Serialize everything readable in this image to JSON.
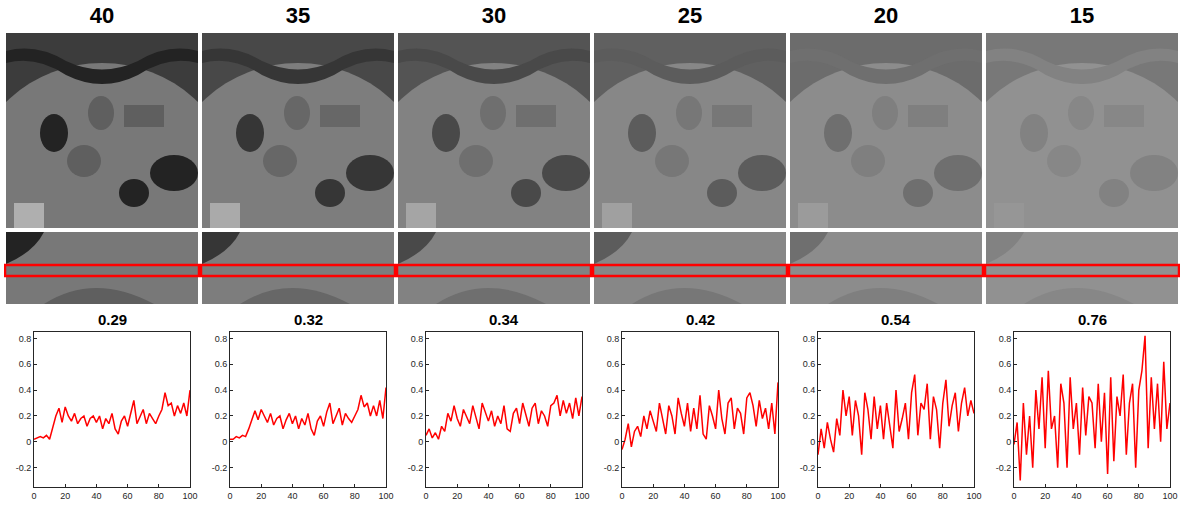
{
  "image_panels": [
    {
      "title": "40"
    },
    {
      "title": "35"
    },
    {
      "title": "30"
    },
    {
      "title": "25"
    },
    {
      "title": "20"
    },
    {
      "title": "15"
    }
  ],
  "chart_data": [
    {
      "type": "line",
      "title": "0.29",
      "color": "#ff0000",
      "xlim": [
        0,
        100
      ],
      "xticks": [
        0,
        20,
        40,
        60,
        80,
        100
      ],
      "ylim": [
        -0.35,
        0.85
      ],
      "yticks": [
        -0.2,
        0,
        0.2,
        0.4,
        0.6,
        0.8
      ],
      "x": [
        0,
        2,
        4,
        6,
        8,
        10,
        12,
        14,
        16,
        18,
        20,
        22,
        24,
        26,
        28,
        30,
        32,
        34,
        36,
        38,
        40,
        42,
        44,
        46,
        48,
        50,
        52,
        54,
        56,
        58,
        60,
        62,
        64,
        66,
        68,
        70,
        72,
        74,
        76,
        78,
        80,
        82,
        84,
        86,
        88,
        90,
        92,
        94,
        96,
        98,
        100
      ],
      "values": [
        0.02,
        0.03,
        0.04,
        0.03,
        0.05,
        0.02,
        0.12,
        0.2,
        0.26,
        0.15,
        0.27,
        0.2,
        0.16,
        0.22,
        0.14,
        0.18,
        0.2,
        0.12,
        0.18,
        0.2,
        0.15,
        0.2,
        0.1,
        0.18,
        0.14,
        0.22,
        0.1,
        0.06,
        0.16,
        0.2,
        0.12,
        0.22,
        0.32,
        0.14,
        0.2,
        0.25,
        0.14,
        0.22,
        0.18,
        0.14,
        0.2,
        0.25,
        0.38,
        0.28,
        0.3,
        0.2,
        0.28,
        0.22,
        0.3,
        0.2,
        0.4
      ]
    },
    {
      "type": "line",
      "title": "0.32",
      "color": "#ff0000",
      "xlim": [
        0,
        100
      ],
      "xticks": [
        0,
        20,
        40,
        60,
        80,
        100
      ],
      "ylim": [
        -0.35,
        0.85
      ],
      "yticks": [
        -0.2,
        0,
        0.2,
        0.4,
        0.6,
        0.8
      ],
      "x": [
        0,
        2,
        4,
        6,
        8,
        10,
        12,
        14,
        16,
        18,
        20,
        22,
        24,
        26,
        28,
        30,
        32,
        34,
        36,
        38,
        40,
        42,
        44,
        46,
        48,
        50,
        52,
        54,
        56,
        58,
        60,
        62,
        64,
        66,
        68,
        70,
        72,
        74,
        76,
        78,
        80,
        82,
        84,
        86,
        88,
        90,
        92,
        94,
        96,
        98,
        100
      ],
      "values": [
        0.02,
        0.02,
        0.04,
        0.03,
        0.05,
        0.04,
        0.1,
        0.18,
        0.24,
        0.17,
        0.25,
        0.2,
        0.15,
        0.22,
        0.13,
        0.18,
        0.2,
        0.1,
        0.17,
        0.22,
        0.14,
        0.2,
        0.1,
        0.18,
        0.13,
        0.22,
        0.1,
        0.05,
        0.16,
        0.2,
        0.12,
        0.23,
        0.3,
        0.14,
        0.2,
        0.26,
        0.13,
        0.22,
        0.18,
        0.15,
        0.2,
        0.25,
        0.36,
        0.27,
        0.3,
        0.2,
        0.28,
        0.2,
        0.32,
        0.18,
        0.42
      ]
    },
    {
      "type": "line",
      "title": "0.34",
      "color": "#ff0000",
      "xlim": [
        0,
        100
      ],
      "xticks": [
        0,
        20,
        40,
        60,
        80,
        100
      ],
      "ylim": [
        -0.35,
        0.85
      ],
      "yticks": [
        -0.2,
        0,
        0.2,
        0.4,
        0.6,
        0.8
      ],
      "x": [
        0,
        2,
        4,
        6,
        8,
        10,
        12,
        14,
        16,
        18,
        20,
        22,
        24,
        26,
        28,
        30,
        32,
        34,
        36,
        38,
        40,
        42,
        44,
        46,
        48,
        50,
        52,
        54,
        56,
        58,
        60,
        62,
        64,
        66,
        68,
        70,
        72,
        74,
        76,
        78,
        80,
        82,
        84,
        86,
        88,
        90,
        92,
        94,
        96,
        98,
        100
      ],
      "values": [
        0.05,
        0.1,
        0.03,
        0.07,
        0.02,
        0.12,
        0.08,
        0.22,
        0.16,
        0.28,
        0.18,
        0.12,
        0.25,
        0.2,
        0.14,
        0.28,
        0.18,
        0.1,
        0.3,
        0.22,
        0.16,
        0.24,
        0.12,
        0.2,
        0.14,
        0.28,
        0.1,
        0.08,
        0.22,
        0.26,
        0.14,
        0.3,
        0.2,
        0.12,
        0.26,
        0.3,
        0.14,
        0.24,
        0.2,
        0.12,
        0.28,
        0.3,
        0.36,
        0.2,
        0.32,
        0.22,
        0.3,
        0.18,
        0.34,
        0.2,
        0.35
      ]
    },
    {
      "type": "line",
      "title": "0.42",
      "color": "#ff0000",
      "xlim": [
        0,
        100
      ],
      "xticks": [
        0,
        20,
        40,
        60,
        80,
        100
      ],
      "ylim": [
        -0.35,
        0.85
      ],
      "yticks": [
        -0.2,
        0,
        0.2,
        0.4,
        0.6,
        0.8
      ],
      "x": [
        0,
        2,
        4,
        6,
        8,
        10,
        12,
        14,
        16,
        18,
        20,
        22,
        24,
        26,
        28,
        30,
        32,
        34,
        36,
        38,
        40,
        42,
        44,
        46,
        48,
        50,
        52,
        54,
        56,
        58,
        60,
        62,
        64,
        66,
        68,
        70,
        72,
        74,
        76,
        78,
        80,
        82,
        84,
        86,
        88,
        90,
        92,
        94,
        96,
        98,
        100
      ],
      "values": [
        -0.06,
        0.02,
        0.14,
        -0.04,
        0.08,
        0.12,
        0.04,
        0.2,
        0.1,
        0.24,
        0.16,
        0.08,
        0.3,
        0.18,
        0.06,
        0.28,
        0.2,
        0.06,
        0.34,
        0.22,
        0.12,
        0.3,
        0.08,
        0.26,
        0.1,
        0.36,
        0.06,
        0.02,
        0.28,
        0.2,
        0.1,
        0.4,
        0.18,
        0.06,
        0.3,
        0.34,
        0.1,
        0.26,
        0.22,
        0.06,
        0.34,
        0.38,
        0.28,
        0.12,
        0.32,
        0.18,
        0.26,
        0.1,
        0.3,
        0.06,
        0.46
      ]
    },
    {
      "type": "line",
      "title": "0.54",
      "color": "#ff0000",
      "xlim": [
        0,
        100
      ],
      "xticks": [
        0,
        20,
        40,
        60,
        80,
        100
      ],
      "ylim": [
        -0.35,
        0.85
      ],
      "yticks": [
        -0.2,
        0,
        0.2,
        0.4,
        0.6,
        0.8
      ],
      "x": [
        0,
        2,
        4,
        6,
        8,
        10,
        12,
        14,
        16,
        18,
        20,
        22,
        24,
        26,
        28,
        30,
        32,
        34,
        36,
        38,
        40,
        42,
        44,
        46,
        48,
        50,
        52,
        54,
        56,
        58,
        60,
        62,
        64,
        66,
        68,
        70,
        72,
        74,
        76,
        78,
        80,
        82,
        84,
        86,
        88,
        90,
        92,
        94,
        96,
        98,
        100
      ],
      "values": [
        -0.1,
        0.1,
        -0.05,
        0.15,
        0.02,
        -0.08,
        0.18,
        0.05,
        0.4,
        0.2,
        0.35,
        0.05,
        0.32,
        0.2,
        -0.1,
        0.38,
        0.25,
        0.02,
        0.35,
        0.1,
        0.28,
        0.02,
        0.3,
        0.12,
        -0.05,
        0.4,
        0.08,
        0.18,
        0.3,
        0.02,
        0.38,
        0.52,
        0.05,
        0.3,
        0.25,
        0.45,
        0.02,
        0.35,
        0.25,
        -0.05,
        0.3,
        0.48,
        0.12,
        0.28,
        0.38,
        0.08,
        0.3,
        0.42,
        0.2,
        0.32,
        0.22
      ]
    },
    {
      "type": "line",
      "title": "0.76",
      "color": "#ff0000",
      "xlim": [
        0,
        100
      ],
      "xticks": [
        0,
        20,
        40,
        60,
        80,
        100
      ],
      "ylim": [
        -0.35,
        0.85
      ],
      "yticks": [
        -0.2,
        0,
        0.2,
        0.4,
        0.6,
        0.8
      ],
      "x": [
        0,
        2,
        4,
        6,
        8,
        10,
        12,
        14,
        16,
        18,
        20,
        22,
        24,
        26,
        28,
        30,
        32,
        34,
        36,
        38,
        40,
        42,
        44,
        46,
        48,
        50,
        52,
        54,
        56,
        58,
        60,
        62,
        64,
        66,
        68,
        70,
        72,
        74,
        76,
        78,
        80,
        82,
        84,
        86,
        88,
        90,
        92,
        94,
        96,
        98,
        100
      ],
      "values": [
        -0.02,
        0.15,
        -0.3,
        0.3,
        -0.1,
        0.2,
        -0.2,
        0.4,
        0.1,
        0.5,
        -0.05,
        0.55,
        0.1,
        0.2,
        -0.2,
        0.45,
        0.3,
        -0.2,
        0.5,
        0.1,
        0.3,
        -0.1,
        0.42,
        0.05,
        0.35,
        0.3,
        -0.05,
        0.45,
        0.0,
        0.38,
        -0.25,
        0.5,
        -0.15,
        0.35,
        0.2,
        0.52,
        -0.1,
        0.3,
        0.45,
        -0.2,
        0.4,
        0.55,
        0.82,
        -0.05,
        0.5,
        0.1,
        0.45,
        0.0,
        0.62,
        0.1,
        0.3
      ]
    }
  ]
}
